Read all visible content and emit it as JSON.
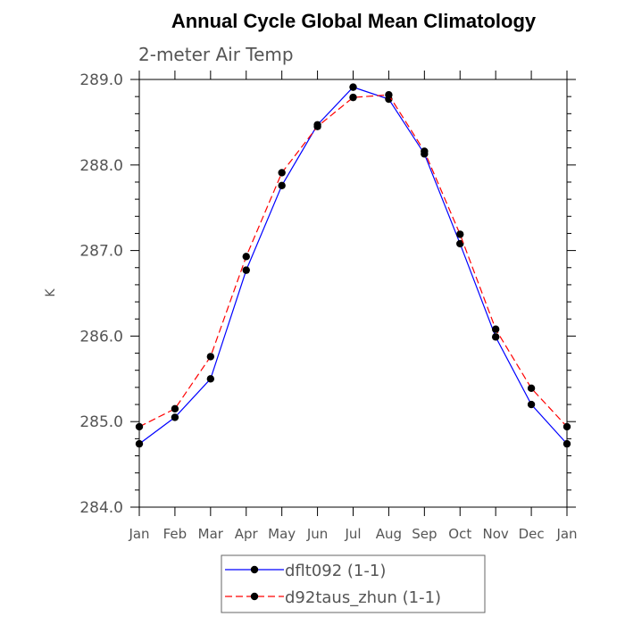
{
  "chart_data": {
    "type": "line",
    "title": "Annual Cycle Global Mean Climatology",
    "subtitle": "2-meter Air Temp",
    "ylabel": "K",
    "xlabel": "",
    "ylim": [
      284.0,
      289.0
    ],
    "yticks": [
      "284.0",
      "285.0",
      "286.0",
      "287.0",
      "288.0",
      "289.0"
    ],
    "categories": [
      "Jan",
      "Feb",
      "Mar",
      "Apr",
      "May",
      "Jun",
      "Jul",
      "Aug",
      "Sep",
      "Oct",
      "Nov",
      "Dec",
      "Jan"
    ],
    "series": [
      {
        "name": "dflt092 (1-1)",
        "color": "#0000ff",
        "dash": "solid",
        "values": [
          284.74,
          285.05,
          285.5,
          286.77,
          287.76,
          288.47,
          288.91,
          288.77,
          288.13,
          287.08,
          285.99,
          285.2,
          284.74
        ]
      },
      {
        "name": "d92taus_zhun (1-1)",
        "color": "#ff0000",
        "dash": "dashed",
        "values": [
          284.94,
          285.15,
          285.76,
          286.93,
          287.91,
          288.45,
          288.79,
          288.82,
          288.16,
          287.19,
          286.08,
          285.39,
          284.94
        ]
      }
    ],
    "grid": false,
    "legend_position": "bottom"
  }
}
